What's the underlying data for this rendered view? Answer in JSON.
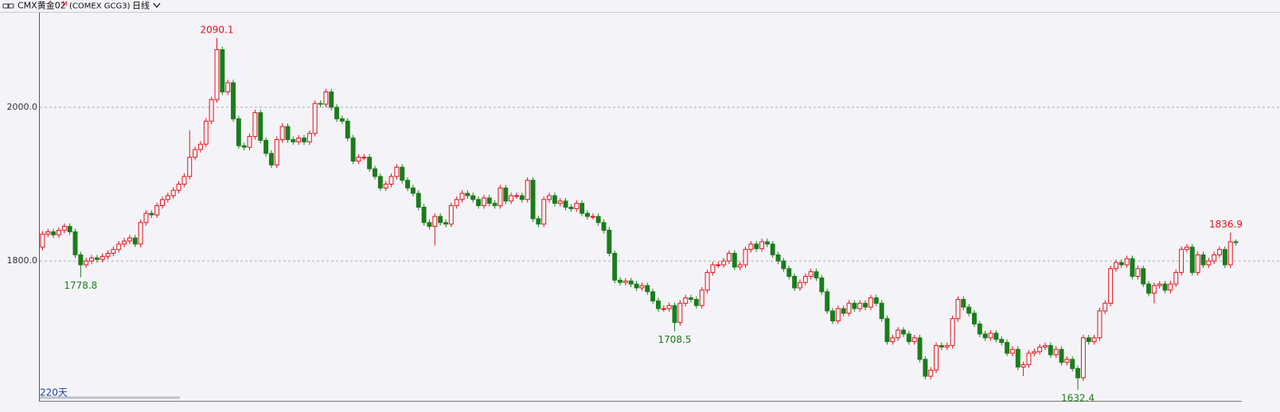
{
  "chart_data": {
    "type": "candlestick",
    "header": {
      "name": "CMX黄金02",
      "mark": "M",
      "code": "(COMEX GCG3)",
      "period": "日线"
    },
    "range_label": "220天",
    "up_color": "#e8101a",
    "down_color": "#1a7d1a",
    "grid": true,
    "ylim": [
      1619,
      2121
    ],
    "yticks": [
      {
        "value": 1800,
        "label": "1800.0"
      },
      {
        "value": 2000,
        "label": "2000.0"
      }
    ],
    "open": [
      1818,
      1835,
      1838,
      1834,
      1840,
      1845,
      1838,
      1808,
      1795,
      1800,
      1804,
      1802,
      1806,
      1810,
      1815,
      1822,
      1826,
      1830,
      1822,
      1850,
      1862,
      1860,
      1872,
      1880,
      1885,
      1892,
      1900,
      1910,
      1935,
      1945,
      1952,
      1982,
      2010,
      2075,
      2020,
      2032,
      1985,
      1950,
      1948,
      1962,
      1993,
      1957,
      1940,
      1925,
      1958,
      1975,
      1958,
      1955,
      1960,
      1955,
      1966,
      2005,
      2004,
      2020,
      2000,
      1985,
      1982,
      1960,
      1930,
      1935,
      1935,
      1920,
      1910,
      1895,
      1900,
      1910,
      1922,
      1905,
      1895,
      1888,
      1870,
      1850,
      1845,
      1858,
      1850,
      1848,
      1872,
      1880,
      1888,
      1885,
      1880,
      1872,
      1882,
      1875,
      1872,
      1895,
      1878,
      1885,
      1885,
      1880,
      1905,
      1855,
      1848,
      1880,
      1885,
      1875,
      1878,
      1870,
      1868,
      1875,
      1862,
      1858,
      1858,
      1850,
      1840,
      1810,
      1775,
      1772,
      1774,
      1770,
      1765,
      1768,
      1760,
      1748,
      1738,
      1738,
      1742,
      1720,
      1745,
      1752,
      1750,
      1742,
      1762,
      1785,
      1795,
      1795,
      1800,
      1810,
      1792,
      1795,
      1815,
      1822,
      1816,
      1825,
      1822,
      1808,
      1800,
      1790,
      1780,
      1765,
      1772,
      1780,
      1786,
      1778,
      1760,
      1735,
      1722,
      1738,
      1732,
      1745,
      1738,
      1745,
      1740,
      1752,
      1745,
      1725,
      1695,
      1700,
      1710,
      1705,
      1695,
      1700,
      1672,
      1650,
      1658,
      1690,
      1688,
      1690,
      1725,
      1750,
      1740,
      1732,
      1718,
      1705,
      1700,
      1706,
      1698,
      1694,
      1680,
      1685,
      1662,
      1665,
      1680,
      1682,
      1688,
      1690,
      1678,
      1685,
      1668,
      1672,
      1660,
      1648,
      1700,
      1695,
      1700,
      1735,
      1745,
      1790,
      1798,
      1795,
      1803,
      1780,
      1790,
      1770,
      1758,
      1768,
      1770,
      1762,
      1770,
      1785,
      1815,
      1818,
      1785,
      1808,
      1795,
      1800,
      1808,
      1815,
      1795,
      1825
    ],
    "high": [
      1839,
      1842,
      1842,
      1844,
      1849,
      1849,
      1842,
      1812,
      1804,
      1808,
      1808,
      1810,
      1814,
      1819,
      1826,
      1830,
      1834,
      1834,
      1854,
      1866,
      1866,
      1876,
      1884,
      1889,
      1896,
      1904,
      1914,
      1970,
      1949,
      1956,
      1986,
      2014,
      2090.1,
      2079,
      2036,
      2036,
      1989,
      1954,
      1966,
      1997,
      1997,
      1961,
      1944,
      1962,
      1979,
      1979,
      1962,
      1964,
      1964,
      1970,
      2009,
      2009,
      2024,
      2024,
      2004,
      1989,
      1986,
      1964,
      1939,
      1939,
      1939,
      1924,
      1914,
      1904,
      1914,
      1926,
      1926,
      1909,
      1899,
      1892,
      1874,
      1854,
      1862,
      1862,
      1854,
      1876,
      1884,
      1892,
      1892,
      1889,
      1884,
      1886,
      1886,
      1879,
      1899,
      1899,
      1889,
      1889,
      1889,
      1909,
      1909,
      1859,
      1884,
      1889,
      1889,
      1882,
      1882,
      1874,
      1879,
      1879,
      1866,
      1862,
      1862,
      1854,
      1844,
      1814,
      1779,
      1778,
      1778,
      1774,
      1772,
      1772,
      1764,
      1752,
      1742,
      1746,
      1746,
      1749,
      1756,
      1756,
      1754,
      1766,
      1789,
      1799,
      1799,
      1804,
      1814,
      1814,
      1799,
      1819,
      1826,
      1826,
      1829,
      1829,
      1826,
      1812,
      1804,
      1794,
      1784,
      1776,
      1784,
      1790,
      1790,
      1782,
      1764,
      1739,
      1742,
      1742,
      1749,
      1749,
      1749,
      1749,
      1756,
      1756,
      1749,
      1729,
      1704,
      1714,
      1714,
      1709,
      1704,
      1704,
      1676,
      1662,
      1694,
      1694,
      1694,
      1729,
      1754,
      1754,
      1744,
      1736,
      1722,
      1709,
      1710,
      1710,
      1702,
      1698,
      1689,
      1689,
      1669,
      1684,
      1686,
      1692,
      1694,
      1694,
      1689,
      1689,
      1676,
      1676,
      1664,
      1704,
      1704,
      1704,
      1739,
      1749,
      1794,
      1802,
      1802,
      1807,
      1807,
      1794,
      1794,
      1774,
      1772,
      1774,
      1774,
      1774,
      1789,
      1819,
      1822,
      1822,
      1812,
      1812,
      1804,
      1812,
      1819,
      1819,
      1836.9,
      1828
    ],
    "low": [
      1814,
      1831,
      1830,
      1830,
      1836,
      1834,
      1804,
      1778.8,
      1791,
      1796,
      1798,
      1798,
      1802,
      1806,
      1811,
      1818,
      1822,
      1818,
      1818,
      1846,
      1856,
      1856,
      1868,
      1876,
      1881,
      1888,
      1896,
      1906,
      1931,
      1941,
      1948,
      1978,
      2006,
      2016,
      2016,
      1981,
      1946,
      1944,
      1944,
      1958,
      1953,
      1936,
      1921,
      1921,
      1954,
      1954,
      1951,
      1951,
      1951,
      1951,
      1962,
      2000,
      2000,
      1996,
      1981,
      1978,
      1956,
      1926,
      1926,
      1931,
      1916,
      1906,
      1891,
      1891,
      1896,
      1906,
      1901,
      1891,
      1884,
      1866,
      1846,
      1841,
      1820,
      1846,
      1844,
      1844,
      1868,
      1876,
      1881,
      1876,
      1868,
      1868,
      1871,
      1868,
      1868,
      1874,
      1874,
      1881,
      1876,
      1876,
      1851,
      1844,
      1844,
      1876,
      1871,
      1871,
      1866,
      1864,
      1864,
      1858,
      1854,
      1854,
      1846,
      1836,
      1806,
      1771,
      1768,
      1768,
      1766,
      1761,
      1761,
      1756,
      1744,
      1734,
      1734,
      1734,
      1708.5,
      1716,
      1741,
      1746,
      1738,
      1738,
      1758,
      1781,
      1791,
      1791,
      1796,
      1788,
      1788,
      1791,
      1811,
      1812,
      1812,
      1818,
      1804,
      1796,
      1786,
      1776,
      1761,
      1761,
      1768,
      1776,
      1774,
      1756,
      1731,
      1718,
      1718,
      1728,
      1728,
      1734,
      1734,
      1736,
      1736,
      1741,
      1721,
      1691,
      1691,
      1696,
      1701,
      1691,
      1691,
      1668,
      1646,
      1646,
      1654,
      1684,
      1684,
      1686,
      1721,
      1736,
      1728,
      1714,
      1701,
      1696,
      1696,
      1694,
      1690,
      1676,
      1676,
      1658,
      1650,
      1661,
      1676,
      1678,
      1684,
      1674,
      1674,
      1664,
      1664,
      1656,
      1632.4,
      1644,
      1691,
      1691,
      1696,
      1731,
      1741,
      1786,
      1791,
      1791,
      1776,
      1776,
      1766,
      1754,
      1745,
      1764,
      1758,
      1758,
      1766,
      1781,
      1811,
      1781,
      1781,
      1791,
      1791,
      1796,
      1804,
      1791,
      1791,
      1820
    ],
    "close": [
      1835,
      1838,
      1834,
      1840,
      1845,
      1838,
      1808,
      1795,
      1800,
      1804,
      1802,
      1806,
      1810,
      1815,
      1822,
      1826,
      1830,
      1822,
      1850,
      1862,
      1860,
      1872,
      1880,
      1885,
      1892,
      1900,
      1910,
      1935,
      1945,
      1952,
      1982,
      2010,
      2075,
      2020,
      2032,
      1985,
      1950,
      1948,
      1962,
      1993,
      1957,
      1940,
      1925,
      1958,
      1975,
      1958,
      1955,
      1960,
      1955,
      1966,
      2005,
      2004,
      2020,
      2000,
      1985,
      1982,
      1960,
      1930,
      1935,
      1935,
      1920,
      1910,
      1895,
      1900,
      1910,
      1922,
      1905,
      1895,
      1888,
      1870,
      1850,
      1845,
      1858,
      1850,
      1848,
      1872,
      1880,
      1888,
      1885,
      1880,
      1872,
      1882,
      1875,
      1872,
      1895,
      1878,
      1885,
      1885,
      1880,
      1905,
      1855,
      1848,
      1880,
      1885,
      1875,
      1878,
      1870,
      1868,
      1875,
      1862,
      1858,
      1858,
      1850,
      1840,
      1810,
      1775,
      1772,
      1774,
      1770,
      1765,
      1768,
      1760,
      1748,
      1738,
      1738,
      1742,
      1720,
      1745,
      1752,
      1750,
      1742,
      1762,
      1785,
      1795,
      1795,
      1800,
      1810,
      1792,
      1795,
      1815,
      1822,
      1816,
      1825,
      1822,
      1808,
      1800,
      1790,
      1780,
      1765,
      1772,
      1780,
      1786,
      1778,
      1760,
      1735,
      1722,
      1738,
      1732,
      1745,
      1738,
      1745,
      1740,
      1752,
      1745,
      1725,
      1695,
      1700,
      1710,
      1705,
      1695,
      1700,
      1672,
      1650,
      1658,
      1690,
      1688,
      1690,
      1725,
      1750,
      1740,
      1732,
      1718,
      1705,
      1700,
      1706,
      1698,
      1694,
      1680,
      1685,
      1662,
      1665,
      1680,
      1682,
      1688,
      1690,
      1678,
      1685,
      1668,
      1672,
      1660,
      1648,
      1700,
      1695,
      1700,
      1735,
      1745,
      1790,
      1798,
      1795,
      1803,
      1780,
      1790,
      1770,
      1758,
      1768,
      1770,
      1762,
      1770,
      1785,
      1815,
      1818,
      1785,
      1808,
      1795,
      1800,
      1808,
      1815,
      1795,
      1825,
      1824
    ]
  }
}
